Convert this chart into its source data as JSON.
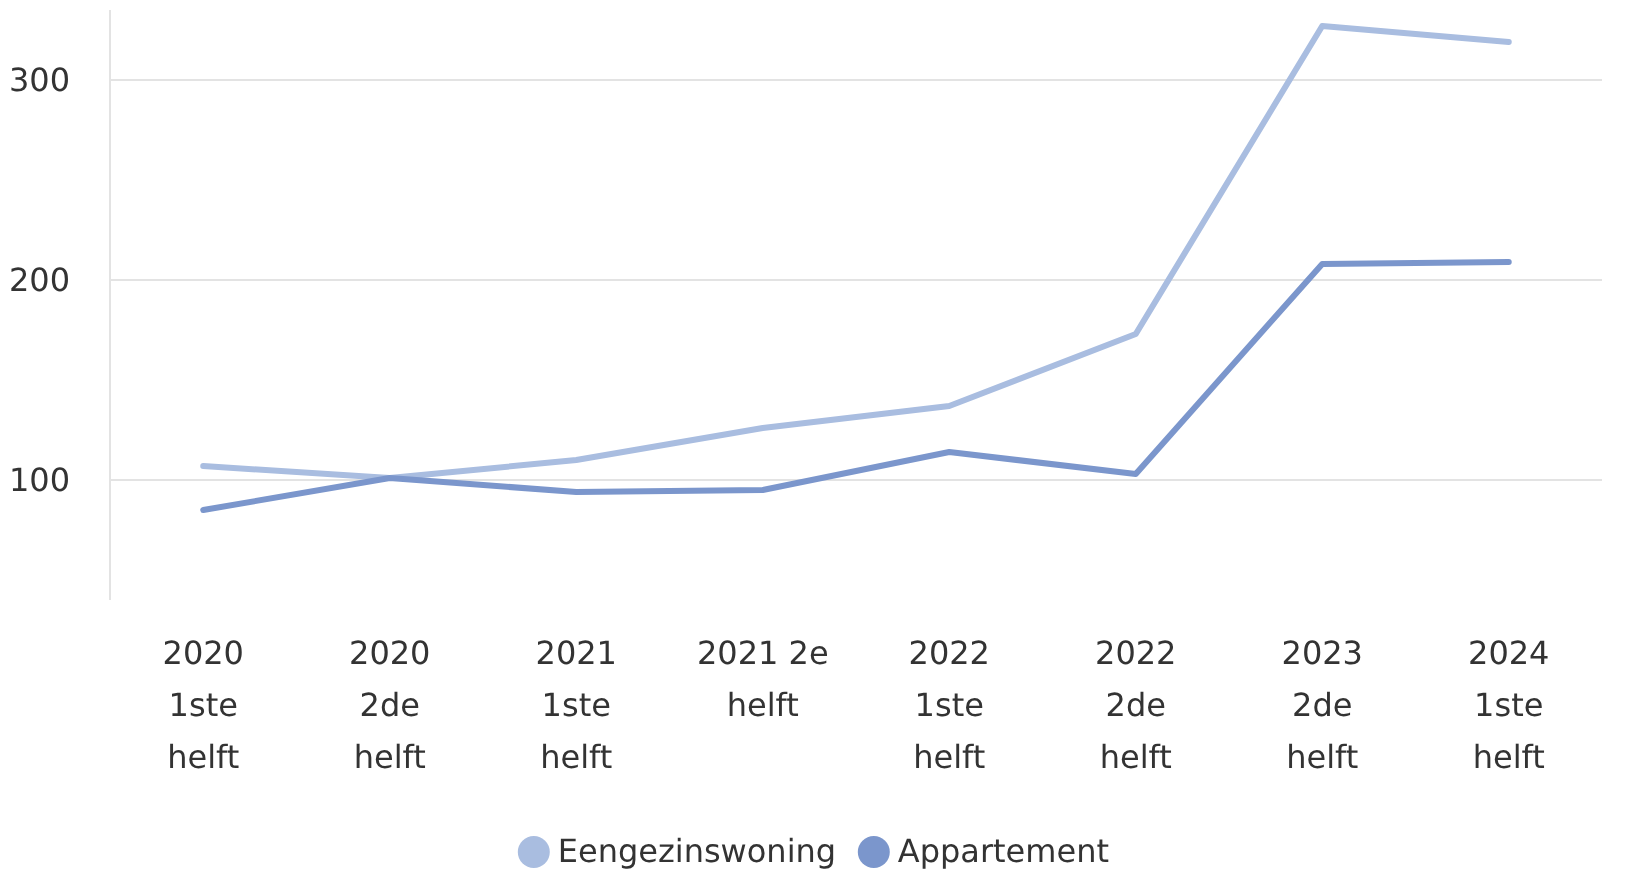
{
  "chart_data": {
    "type": "line",
    "categories": [
      "2020 1ste helft",
      "2020 2de helft",
      "2021 1ste helft",
      "2021 2e helft",
      "2022 1ste helft",
      "2022 2de helft",
      "2023 2de helft",
      "2024 1ste helft"
    ],
    "series": [
      {
        "name": "Eengezinswoning",
        "color": "#a9bde0",
        "values": [
          107,
          101,
          110,
          126,
          137,
          173,
          327,
          319
        ]
      },
      {
        "name": "Appartement",
        "color": "#7b96cc",
        "values": [
          85,
          101,
          94,
          95,
          114,
          103,
          208,
          209
        ]
      }
    ],
    "ylim": [
      40,
      335
    ],
    "yticks": [
      100,
      200,
      300
    ],
    "grid": "y",
    "legend": "bottom",
    "marker": "none",
    "line_style": "solid"
  }
}
